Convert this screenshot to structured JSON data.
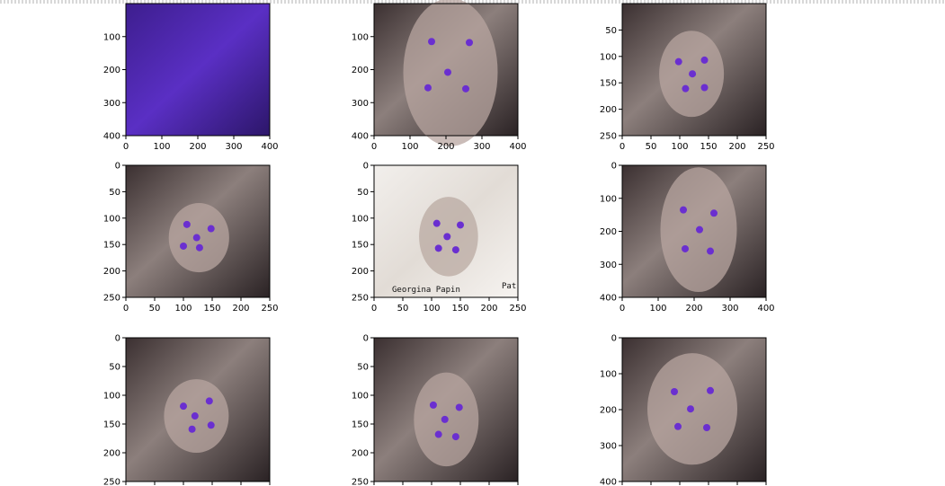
{
  "figure": {
    "title": "",
    "colors": {
      "landmark": "#6a2fd0",
      "frame": "#000000",
      "tick_text": "#000000"
    }
  },
  "chart_data": [
    {
      "type": "image",
      "panel": 1,
      "xlim": [
        0,
        400
      ],
      "ylim": [
        400,
        0
      ],
      "xticks": [
        "0",
        "100",
        "200",
        "300",
        "400"
      ],
      "yticks": [
        "100",
        "200",
        "300",
        "400"
      ],
      "landmarks": [],
      "image_tint": "purple",
      "printed_text": []
    },
    {
      "type": "image",
      "panel": 2,
      "xlim": [
        0,
        400
      ],
      "ylim": [
        400,
        0
      ],
      "xticks": [
        "0",
        "100",
        "200",
        "300",
        "400"
      ],
      "yticks": [
        "100",
        "200",
        "300",
        "400"
      ],
      "landmarks": [
        [
          160,
          115
        ],
        [
          265,
          118
        ],
        [
          205,
          208
        ],
        [
          150,
          255
        ],
        [
          255,
          258
        ]
      ],
      "image_tint": "sepia",
      "printed_text": []
    },
    {
      "type": "image",
      "panel": 3,
      "xlim": [
        0,
        250
      ],
      "ylim": [
        250,
        0
      ],
      "xticks": [
        "0",
        "50",
        "100",
        "150",
        "200",
        "250"
      ],
      "yticks": [
        "50",
        "100",
        "150",
        "200",
        "250"
      ],
      "landmarks": [
        [
          98,
          110
        ],
        [
          143,
          107
        ],
        [
          122,
          133
        ],
        [
          110,
          161
        ],
        [
          143,
          159
        ]
      ],
      "image_tint": "sepia",
      "printed_text": []
    },
    {
      "type": "image",
      "panel": 4,
      "xlim": [
        0,
        250
      ],
      "ylim": [
        250,
        0
      ],
      "xticks": [
        "0",
        "50",
        "100",
        "150",
        "200",
        "250"
      ],
      "yticks": [
        "0",
        "50",
        "100",
        "150",
        "200",
        "250"
      ],
      "landmarks": [
        [
          106,
          112
        ],
        [
          148,
          120
        ],
        [
          123,
          137
        ],
        [
          100,
          153
        ],
        [
          128,
          156
        ]
      ],
      "image_tint": "sepia",
      "printed_text": []
    },
    {
      "type": "image",
      "panel": 5,
      "xlim": [
        0,
        250
      ],
      "ylim": [
        250,
        0
      ],
      "xticks": [
        "0",
        "50",
        "100",
        "150",
        "200",
        "250"
      ],
      "yticks": [
        "0",
        "50",
        "100",
        "150",
        "200",
        "250"
      ],
      "landmarks": [
        [
          109,
          110
        ],
        [
          150,
          113
        ],
        [
          127,
          135
        ],
        [
          112,
          157
        ],
        [
          142,
          160
        ]
      ],
      "image_tint": "light",
      "printed_text": [
        "Georgina Papin",
        "Pat"
      ]
    },
    {
      "type": "image",
      "panel": 6,
      "xlim": [
        0,
        400
      ],
      "ylim": [
        400,
        0
      ],
      "xticks": [
        "0",
        "100",
        "200",
        "300",
        "400"
      ],
      "yticks": [
        "0",
        "100",
        "200",
        "300",
        "400"
      ],
      "landmarks": [
        [
          170,
          135
        ],
        [
          255,
          145
        ],
        [
          215,
          195
        ],
        [
          175,
          253
        ],
        [
          245,
          260
        ]
      ],
      "image_tint": "sepia",
      "printed_text": []
    },
    {
      "type": "image",
      "panel": 7,
      "xlim": [
        0,
        250
      ],
      "ylim": [
        250,
        0
      ],
      "xticks": [],
      "yticks": [
        "0",
        "50",
        "100",
        "150",
        "200",
        "250"
      ],
      "landmarks": [
        [
          100,
          119
        ],
        [
          145,
          110
        ],
        [
          120,
          136
        ],
        [
          115,
          159
        ],
        [
          148,
          152
        ]
      ],
      "image_tint": "sepia",
      "printed_text": []
    },
    {
      "type": "image",
      "panel": 8,
      "xlim": [
        0,
        250
      ],
      "ylim": [
        250,
        0
      ],
      "xticks": [],
      "yticks": [
        "0",
        "50",
        "100",
        "150",
        "200",
        "250"
      ],
      "landmarks": [
        [
          103,
          117
        ],
        [
          148,
          121
        ],
        [
          123,
          142
        ],
        [
          112,
          168
        ],
        [
          142,
          172
        ]
      ],
      "image_tint": "sepia",
      "printed_text": []
    },
    {
      "type": "image",
      "panel": 9,
      "xlim": [
        0,
        400
      ],
      "ylim": [
        400,
        0
      ],
      "xticks": [],
      "yticks": [
        "0",
        "100",
        "200",
        "300",
        "400"
      ],
      "landmarks": [
        [
          145,
          150
        ],
        [
          245,
          147
        ],
        [
          190,
          198
        ],
        [
          155,
          247
        ],
        [
          235,
          250
        ]
      ],
      "image_tint": "sepia",
      "printed_text": []
    }
  ]
}
